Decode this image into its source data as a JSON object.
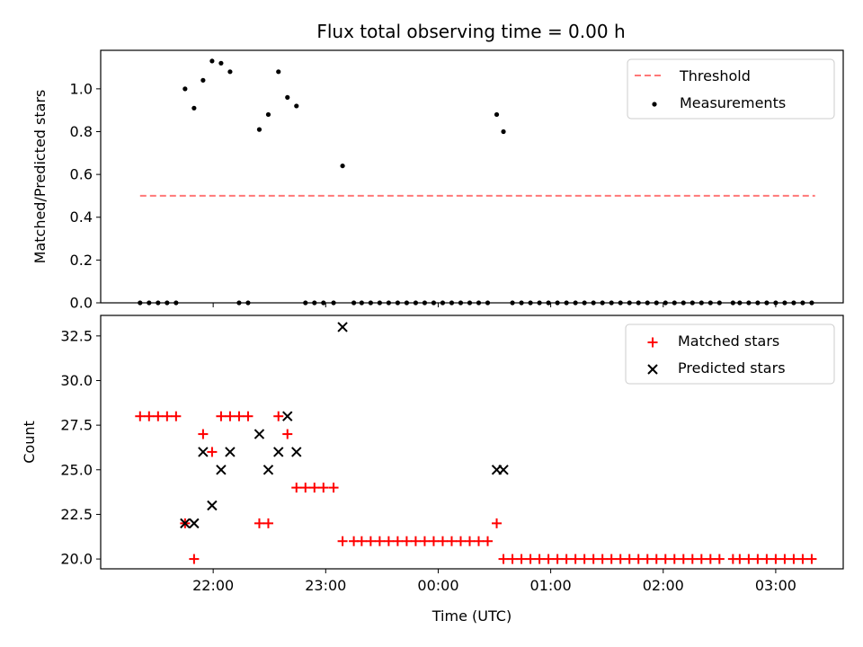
{
  "figure": {
    "title": "Flux total observing time = 0.00 h",
    "x_label": "Time (UTC)",
    "x_tick_labels": [
      "22:00",
      "23:00",
      "00:00",
      "01:00",
      "02:00",
      "03:00"
    ]
  },
  "chart_data": [
    {
      "type": "scatter",
      "title": "Flux total observing time = 0.00 h",
      "xlabel": "",
      "ylabel": "Matched/Predicted stars",
      "x_unit": "hours (UTC, 24 = 00:00)",
      "xlim": [
        21.0,
        27.6
      ],
      "ylim": [
        0.0,
        1.18
      ],
      "y_ticks": [
        "0.0",
        "0.2",
        "0.4",
        "0.6",
        "0.8",
        "1.0"
      ],
      "grid": false,
      "legend_position": "top-right",
      "series": [
        {
          "name": "Threshold",
          "kind": "dashed-line",
          "color": "#ff7777",
          "x": [
            21.35,
            27.35
          ],
          "y": [
            0.5,
            0.5
          ]
        },
        {
          "name": "Measurements",
          "kind": "points",
          "color": "#000000",
          "x": [
            21.35,
            21.43,
            21.51,
            21.59,
            21.67,
            21.75,
            21.83,
            21.91,
            21.99,
            22.07,
            22.15,
            22.23,
            22.31,
            22.41,
            22.49,
            22.58,
            22.66,
            22.74,
            22.82,
            22.9,
            22.98,
            23.07,
            23.15,
            23.25,
            23.32,
            23.4,
            23.48,
            23.56,
            23.64,
            23.72,
            23.8,
            23.88,
            23.96,
            24.04,
            24.12,
            24.2,
            24.28,
            24.36,
            24.44,
            24.52,
            24.58,
            24.66,
            24.74,
            24.82,
            24.9,
            24.98,
            25.06,
            25.14,
            25.22,
            25.3,
            25.38,
            25.46,
            25.54,
            25.62,
            25.7,
            25.78,
            25.86,
            25.94,
            26.02,
            26.1,
            26.18,
            26.26,
            26.34,
            26.42,
            26.5,
            26.62,
            26.68,
            26.76,
            26.84,
            26.92,
            27.0,
            27.08,
            27.16,
            27.24,
            27.32
          ],
          "y": [
            0,
            0,
            0,
            0,
            0,
            1.0,
            0.91,
            1.04,
            1.13,
            1.12,
            1.08,
            0,
            0,
            0.81,
            0.88,
            1.08,
            0.96,
            0.92,
            0,
            0,
            0,
            0,
            0.64,
            0,
            0,
            0,
            0,
            0,
            0,
            0,
            0,
            0,
            0,
            0,
            0,
            0,
            0,
            0,
            0,
            0.88,
            0.8,
            0,
            0,
            0,
            0,
            0,
            0,
            0,
            0,
            0,
            0,
            0,
            0,
            0,
            0,
            0,
            0,
            0,
            0,
            0,
            0,
            0,
            0,
            0,
            0,
            0,
            0,
            0,
            0,
            0,
            0,
            0,
            0,
            0,
            0
          ]
        }
      ]
    },
    {
      "type": "scatter",
      "title": "",
      "xlabel": "Time (UTC)",
      "ylabel": "Count",
      "x_unit": "hours (UTC, 24 = 00:00)",
      "x_ticks": [
        "22:00",
        "23:00",
        "00:00",
        "01:00",
        "02:00",
        "03:00"
      ],
      "xlim": [
        21.0,
        27.6
      ],
      "ylim": [
        19.45,
        33.65
      ],
      "y_ticks": [
        "20.0",
        "22.5",
        "25.0",
        "27.5",
        "30.0",
        "32.5"
      ],
      "grid": false,
      "legend_position": "top-right",
      "series": [
        {
          "name": "Matched stars",
          "marker": "plus",
          "color": "#ff0000",
          "x": [
            21.35,
            21.43,
            21.51,
            21.59,
            21.67,
            21.75,
            21.83,
            21.91,
            21.99,
            22.07,
            22.15,
            22.23,
            22.31,
            22.41,
            22.49,
            22.58,
            22.66,
            22.74,
            22.82,
            22.9,
            22.98,
            23.07,
            23.15,
            23.25,
            23.32,
            23.4,
            23.48,
            23.56,
            23.64,
            23.72,
            23.8,
            23.88,
            23.96,
            24.04,
            24.12,
            24.2,
            24.28,
            24.36,
            24.44,
            24.52,
            24.58,
            24.66,
            24.74,
            24.82,
            24.9,
            24.98,
            25.06,
            25.14,
            25.22,
            25.3,
            25.38,
            25.46,
            25.54,
            25.62,
            25.7,
            25.78,
            25.86,
            25.94,
            26.02,
            26.1,
            26.18,
            26.26,
            26.34,
            26.42,
            26.5,
            26.62,
            26.68,
            26.76,
            26.84,
            26.92,
            27.0,
            27.08,
            27.16,
            27.24,
            27.32
          ],
          "y": [
            28,
            28,
            28,
            28,
            28,
            22,
            20,
            27,
            26,
            28,
            28,
            28,
            28,
            22,
            22,
            28,
            27,
            24,
            24,
            24,
            24,
            24,
            21,
            21,
            21,
            21,
            21,
            21,
            21,
            21,
            21,
            21,
            21,
            21,
            21,
            21,
            21,
            21,
            21,
            22,
            20,
            20,
            20,
            20,
            20,
            20,
            20,
            20,
            20,
            20,
            20,
            20,
            20,
            20,
            20,
            20,
            20,
            20,
            20,
            20,
            20,
            20,
            20,
            20,
            20,
            20,
            20,
            20,
            20,
            20,
            20,
            20,
            20,
            20,
            20
          ]
        },
        {
          "name": "Predicted stars",
          "marker": "x",
          "color": "#000000",
          "x": [
            21.75,
            21.83,
            21.91,
            21.99,
            22.07,
            22.15,
            22.41,
            22.49,
            22.58,
            22.66,
            22.74,
            23.15,
            24.52,
            24.58
          ],
          "y": [
            22,
            22,
            26,
            23,
            25,
            26,
            27,
            25,
            26,
            28,
            26,
            33,
            25,
            25
          ]
        }
      ]
    }
  ]
}
